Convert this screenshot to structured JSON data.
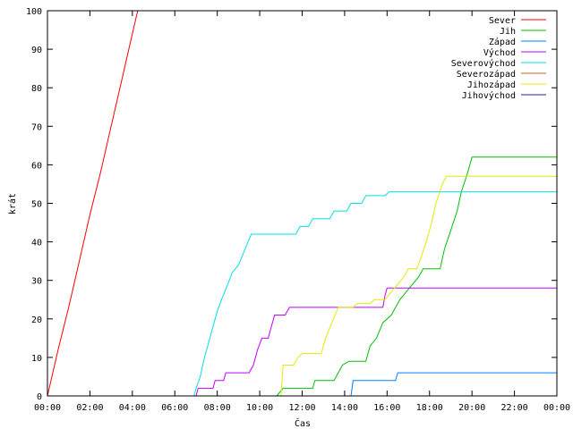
{
  "chart_data": {
    "type": "line",
    "xlabel": "Čas",
    "ylabel": "krát",
    "xlim": [
      0,
      24
    ],
    "ylim": [
      0,
      100
    ],
    "xticks": [
      {
        "value": 0,
        "label": "00:00"
      },
      {
        "value": 2,
        "label": "02:00"
      },
      {
        "value": 4,
        "label": "04:00"
      },
      {
        "value": 6,
        "label": "06:00"
      },
      {
        "value": 8,
        "label": "08:00"
      },
      {
        "value": 10,
        "label": "10:00"
      },
      {
        "value": 12,
        "label": "12:00"
      },
      {
        "value": 14,
        "label": "14:00"
      },
      {
        "value": 16,
        "label": "16:00"
      },
      {
        "value": 18,
        "label": "18:00"
      },
      {
        "value": 20,
        "label": "20:00"
      },
      {
        "value": 22,
        "label": "22:00"
      },
      {
        "value": 24,
        "label": "00:00"
      }
    ],
    "yticks": [
      0,
      10,
      20,
      30,
      40,
      50,
      60,
      70,
      80,
      90,
      100
    ],
    "grid": false,
    "legend_position": "top-right",
    "series": [
      {
        "name": "Sever",
        "color": "#ff0000",
        "points": [
          [
            0,
            0
          ],
          [
            0.5,
            12
          ],
          [
            1,
            23
          ],
          [
            1.5,
            35
          ],
          [
            2,
            47
          ],
          [
            2.5,
            58
          ],
          [
            3,
            70
          ],
          [
            3.5,
            82
          ],
          [
            4,
            94
          ],
          [
            4.25,
            100
          ]
        ]
      },
      {
        "name": "Jih",
        "color": "#00c000",
        "points": [
          [
            10.8,
            0
          ],
          [
            11.1,
            2
          ],
          [
            12.5,
            2
          ],
          [
            12.6,
            4
          ],
          [
            13.5,
            4
          ],
          [
            13.7,
            6
          ],
          [
            13.9,
            8
          ],
          [
            14.2,
            9
          ],
          [
            15.0,
            9
          ],
          [
            15.2,
            13
          ],
          [
            15.5,
            15
          ],
          [
            15.8,
            19
          ],
          [
            16.2,
            21
          ],
          [
            16.4,
            23
          ],
          [
            16.6,
            25
          ],
          [
            16.9,
            27
          ],
          [
            17.2,
            29
          ],
          [
            17.5,
            31
          ],
          [
            17.7,
            33
          ],
          [
            18.5,
            33
          ],
          [
            18.7,
            38
          ],
          [
            19.0,
            43
          ],
          [
            19.3,
            48
          ],
          [
            19.5,
            53
          ],
          [
            19.8,
            58
          ],
          [
            20.0,
            62
          ],
          [
            24.0,
            62
          ]
        ]
      },
      {
        "name": "Západ",
        "color": "#0080ff",
        "points": [
          [
            14.3,
            0
          ],
          [
            14.4,
            4
          ],
          [
            16.4,
            4
          ],
          [
            16.5,
            6
          ],
          [
            24.0,
            6
          ]
        ]
      },
      {
        "name": "Východ",
        "color": "#c000ff",
        "points": [
          [
            7.0,
            0
          ],
          [
            7.1,
            2
          ],
          [
            7.8,
            2
          ],
          [
            7.9,
            4
          ],
          [
            8.3,
            4
          ],
          [
            8.4,
            6
          ],
          [
            9.5,
            6
          ],
          [
            9.7,
            8
          ],
          [
            9.9,
            12
          ],
          [
            10.1,
            15
          ],
          [
            10.4,
            15
          ],
          [
            10.5,
            17
          ],
          [
            10.7,
            21
          ],
          [
            11.2,
            21
          ],
          [
            11.4,
            23
          ],
          [
            15.8,
            23
          ],
          [
            15.9,
            26
          ],
          [
            16.0,
            28
          ],
          [
            24.0,
            28
          ]
        ]
      },
      {
        "name": "Severovýchod",
        "color": "#00e0e0",
        "points": [
          [
            6.9,
            0
          ],
          [
            7.0,
            2
          ],
          [
            7.2,
            5
          ],
          [
            7.4,
            10
          ],
          [
            7.6,
            14
          ],
          [
            7.8,
            18
          ],
          [
            8.0,
            22
          ],
          [
            8.2,
            25
          ],
          [
            8.5,
            29
          ],
          [
            8.7,
            32
          ],
          [
            9.0,
            34
          ],
          [
            9.3,
            38
          ],
          [
            9.6,
            42
          ],
          [
            11.7,
            42
          ],
          [
            11.9,
            44
          ],
          [
            12.3,
            44
          ],
          [
            12.5,
            46
          ],
          [
            13.3,
            46
          ],
          [
            13.5,
            48
          ],
          [
            14.1,
            48
          ],
          [
            14.3,
            50
          ],
          [
            14.8,
            50
          ],
          [
            15.0,
            52
          ],
          [
            15.9,
            52
          ],
          [
            16.1,
            53
          ],
          [
            24.0,
            53
          ]
        ]
      },
      {
        "name": "Severozápad",
        "color": "#d06020",
        "points": []
      },
      {
        "name": "Jihozápad",
        "color": "#e8e800",
        "points": [
          [
            11.0,
            0
          ],
          [
            11.1,
            8
          ],
          [
            11.6,
            8
          ],
          [
            11.8,
            10
          ],
          [
            12.0,
            11
          ],
          [
            12.9,
            11
          ],
          [
            13.1,
            15
          ],
          [
            13.4,
            19
          ],
          [
            13.7,
            23
          ],
          [
            14.4,
            23
          ],
          [
            14.6,
            24
          ],
          [
            15.2,
            24
          ],
          [
            15.4,
            25
          ],
          [
            15.9,
            25
          ],
          [
            16.2,
            27
          ],
          [
            16.5,
            29
          ],
          [
            16.8,
            31
          ],
          [
            17.0,
            33
          ],
          [
            17.4,
            33
          ],
          [
            17.6,
            36
          ],
          [
            17.9,
            41
          ],
          [
            18.1,
            45
          ],
          [
            18.3,
            50
          ],
          [
            18.6,
            55
          ],
          [
            18.8,
            57
          ],
          [
            24.0,
            57
          ]
        ]
      },
      {
        "name": "Jihovýchod",
        "color": "#2020c0",
        "points": []
      }
    ]
  }
}
